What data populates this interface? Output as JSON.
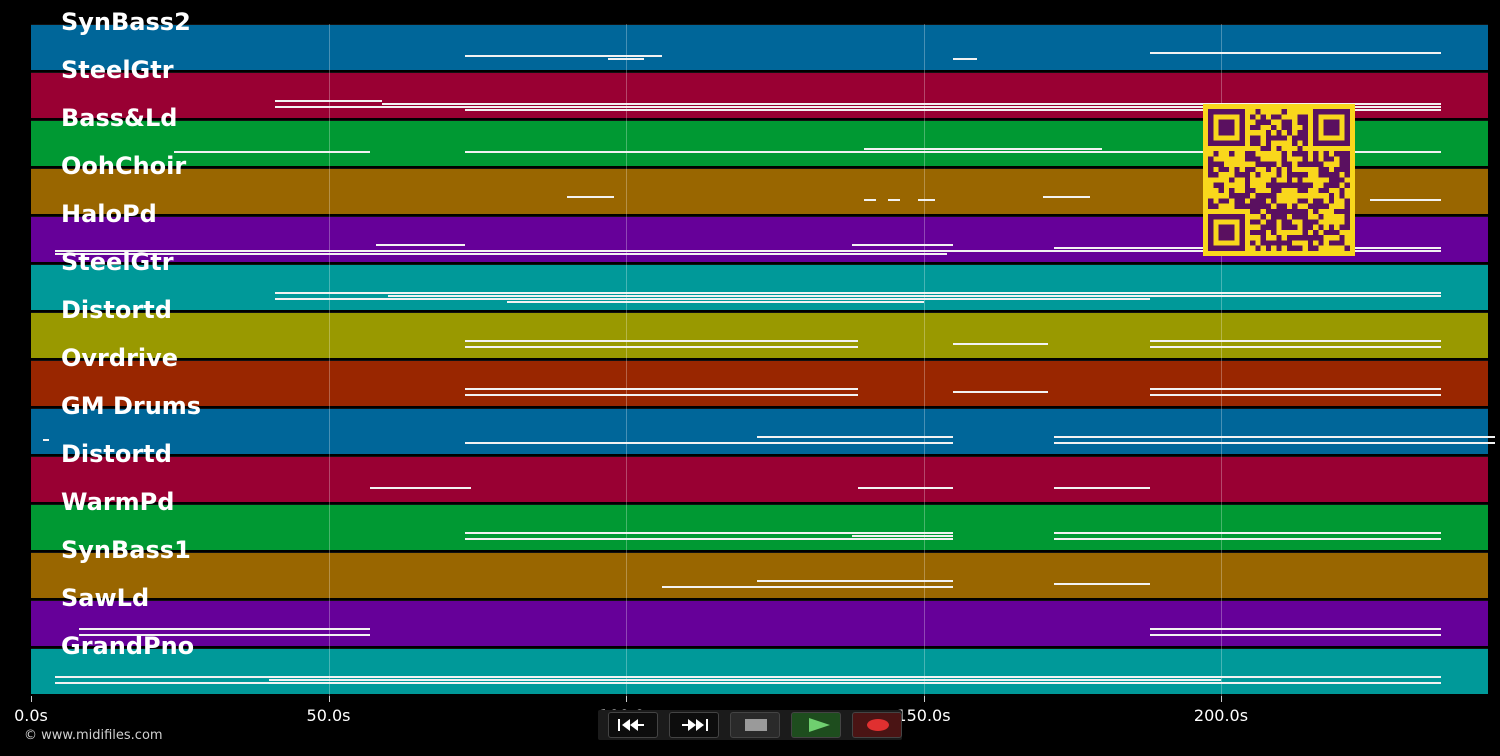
{
  "tracks": [
    {
      "name": "SynBass2",
      "color": "#006699",
      "notes": [
        [
          73,
          106,
          1
        ],
        [
          97,
          103,
          2
        ],
        [
          155,
          159,
          2
        ],
        [
          188,
          237,
          0
        ]
      ]
    },
    {
      "name": "SteelGtr",
      "color": "#990033",
      "notes": [
        [
          41,
          59,
          0
        ],
        [
          59,
          237,
          1
        ],
        [
          73,
          237,
          3
        ],
        [
          41,
          237,
          2
        ]
      ]
    },
    {
      "name": "Bass&Ld",
      "color": "#009933",
      "notes": [
        [
          24,
          57,
          1
        ],
        [
          73,
          230,
          1
        ],
        [
          140,
          180,
          0
        ],
        [
          188,
          237,
          1
        ]
      ]
    },
    {
      "name": "OohChoir",
      "color": "#996600",
      "notes": [
        [
          90,
          98,
          0
        ],
        [
          140,
          142,
          1
        ],
        [
          144,
          146,
          1
        ],
        [
          149,
          152,
          1
        ],
        [
          170,
          178,
          0
        ],
        [
          225,
          237,
          1
        ]
      ]
    },
    {
      "name": "HaloPd",
      "color": "#660099",
      "notes": [
        [
          4,
          237,
          2
        ],
        [
          58,
          73,
          0
        ],
        [
          138,
          155,
          0
        ],
        [
          172,
          237,
          1
        ],
        [
          4,
          154,
          3
        ]
      ]
    },
    {
      "name": "SteelGtr",
      "color": "#009999",
      "notes": [
        [
          41,
          237,
          0
        ],
        [
          41,
          188,
          2
        ],
        [
          60,
          237,
          1
        ],
        [
          80,
          150,
          3
        ]
      ]
    },
    {
      "name": "Distortd",
      "color": "#999900",
      "notes": [
        [
          73,
          139,
          0
        ],
        [
          73,
          139,
          2
        ],
        [
          155,
          171,
          1
        ],
        [
          188,
          237,
          0
        ],
        [
          188,
          237,
          2
        ]
      ]
    },
    {
      "name": "Ovrdrive",
      "color": "#992600",
      "notes": [
        [
          73,
          139,
          0
        ],
        [
          73,
          139,
          2
        ],
        [
          155,
          171,
          1
        ],
        [
          188,
          237,
          0
        ],
        [
          188,
          237,
          2
        ]
      ]
    },
    {
      "name": "GM Drums",
      "color": "#006699",
      "notes": [
        [
          2,
          3,
          1
        ],
        [
          73,
          155,
          2
        ],
        [
          122,
          155,
          0
        ],
        [
          172,
          246,
          0
        ],
        [
          172,
          246,
          2
        ]
      ]
    },
    {
      "name": "Distortd",
      "color": "#990033",
      "notes": [
        [
          57,
          74,
          1
        ],
        [
          139,
          155,
          1
        ],
        [
          172,
          188,
          1
        ]
      ]
    },
    {
      "name": "WarmPd",
      "color": "#009933",
      "notes": [
        [
          73,
          155,
          0
        ],
        [
          73,
          155,
          2
        ],
        [
          138,
          155,
          1
        ],
        [
          172,
          237,
          0
        ],
        [
          172,
          237,
          2
        ]
      ]
    },
    {
      "name": "SynBass1",
      "color": "#996600",
      "notes": [
        [
          106,
          155,
          2
        ],
        [
          122,
          155,
          0
        ],
        [
          172,
          188,
          1
        ]
      ]
    },
    {
      "name": "SawLd",
      "color": "#660099",
      "notes": [
        [
          8,
          57,
          0
        ],
        [
          8,
          57,
          2
        ],
        [
          188,
          237,
          0
        ],
        [
          188,
          237,
          2
        ]
      ]
    },
    {
      "name": "GrandPno",
      "color": "#009999",
      "notes": [
        [
          4,
          237,
          0
        ],
        [
          4,
          237,
          2
        ],
        [
          40,
          200,
          1
        ]
      ]
    }
  ],
  "axis": {
    "ticks": [
      "0.0s",
      "50.0s",
      "100.0s",
      "150.0s",
      "200.0s"
    ],
    "tick_values": [
      0,
      50,
      100,
      150,
      200
    ],
    "max_seconds": 245
  },
  "copyright": "© www.midifiles.com",
  "transport": {
    "rewind_icon": "rewind-icon",
    "fast_forward_icon": "fast-forward-icon",
    "stop_icon": "stop-icon",
    "play_icon": "play-icon",
    "record_icon": "record-icon",
    "play_color": "#2d8a2d",
    "record_color": "#e03030"
  },
  "qr_color": "#f9d71c"
}
